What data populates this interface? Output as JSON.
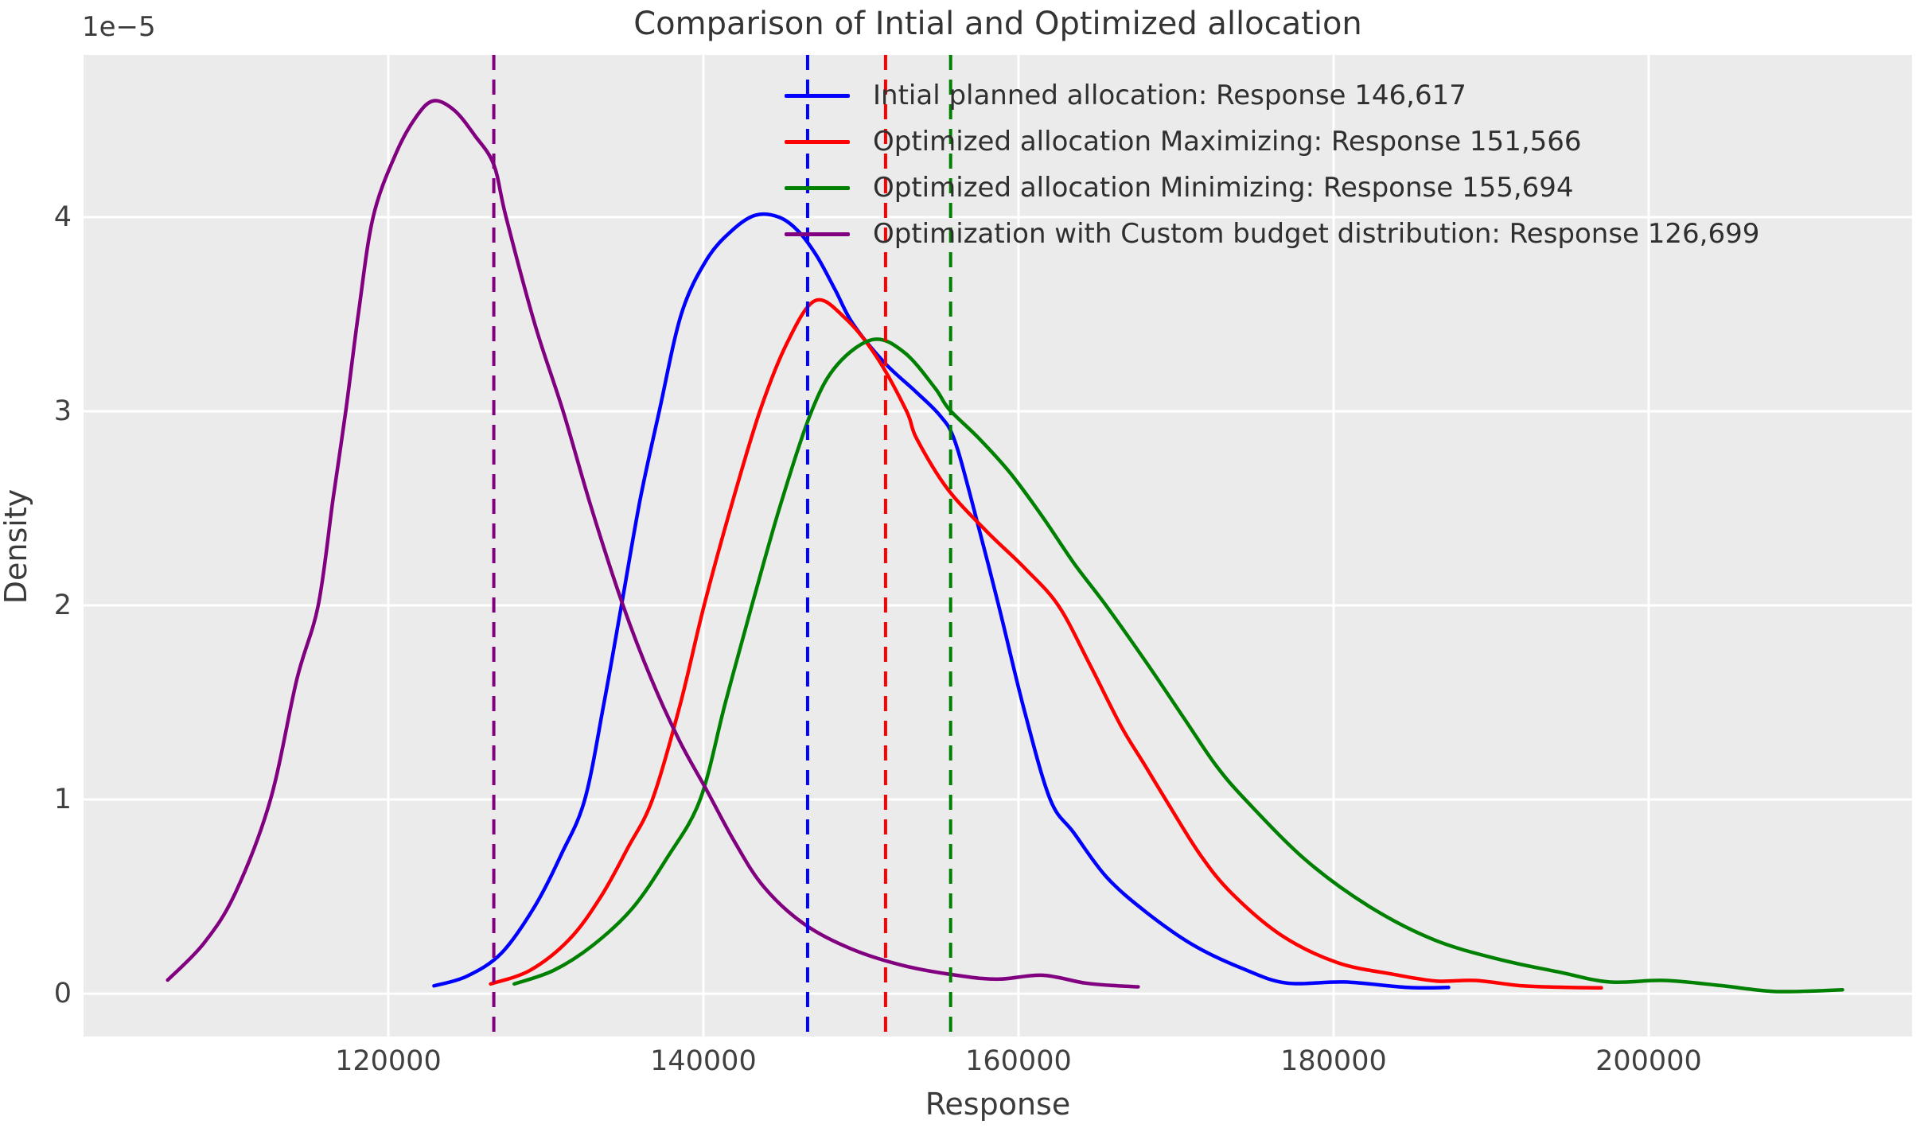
{
  "window": {
    "kind": "matplotlib-figure"
  },
  "chart_data": {
    "type": "line",
    "subtype": "kde-density",
    "title": "Comparison of Intial and Optimized allocation",
    "xlabel": "Response",
    "ylabel": "Density",
    "y_offset_label": "1e−5",
    "y_unit": "1e-5",
    "xlim": [
      100660,
      216720
    ],
    "ylim": [
      -0.221,
      4.836
    ],
    "x_ticks": [
      120000,
      140000,
      160000,
      180000,
      200000
    ],
    "x_tick_labels": [
      "120000",
      "140000",
      "160000",
      "180000",
      "200000"
    ],
    "y_ticks": [
      0,
      1,
      2,
      3,
      4
    ],
    "y_tick_labels": [
      "0",
      "1",
      "2",
      "3",
      "4"
    ],
    "grid": true,
    "plot_background": "#ebebeb",
    "grid_color": "#ffffff",
    "legend_position": "upper center, frameless",
    "series": [
      {
        "name": "initial-planned",
        "legend_label": "Intial planned allocation: Response 146,617",
        "color": "#0000ff",
        "mean": 146617,
        "mean_line_style": "dashed",
        "points": [
          [
            122900,
            0.04
          ],
          [
            125000,
            0.09
          ],
          [
            127200,
            0.21
          ],
          [
            129300,
            0.45
          ],
          [
            131000,
            0.72
          ],
          [
            132475,
            1.0
          ],
          [
            133700,
            1.5
          ],
          [
            134800,
            2.0
          ],
          [
            136000,
            2.55
          ],
          [
            137200,
            3.0
          ],
          [
            138600,
            3.5
          ],
          [
            140200,
            3.78
          ],
          [
            141800,
            3.93
          ],
          [
            143300,
            4.01
          ],
          [
            144800,
            4.0
          ],
          [
            146000,
            3.93
          ],
          [
            147200,
            3.8
          ],
          [
            148400,
            3.62
          ],
          [
            149500,
            3.45
          ],
          [
            151500,
            3.25
          ],
          [
            153500,
            3.1
          ],
          [
            155000,
            2.98
          ],
          [
            155900,
            2.86
          ],
          [
            157000,
            2.55
          ],
          [
            158740,
            2.0
          ],
          [
            160400,
            1.45
          ],
          [
            162020,
            1.0
          ],
          [
            163500,
            0.83
          ],
          [
            165600,
            0.6
          ],
          [
            168100,
            0.42
          ],
          [
            171100,
            0.25
          ],
          [
            174200,
            0.13
          ],
          [
            177000,
            0.055
          ],
          [
            180700,
            0.06
          ],
          [
            184700,
            0.032
          ],
          [
            187300,
            0.032
          ]
        ]
      },
      {
        "name": "optimized-maximizing",
        "legend_label": "Optimized allocation Maximizing: Response 151,566",
        "color": "#ff0000",
        "mean": 151566,
        "mean_line_style": "dashed",
        "points": [
          [
            126500,
            0.05
          ],
          [
            129000,
            0.12
          ],
          [
            131500,
            0.28
          ],
          [
            133500,
            0.5
          ],
          [
            135200,
            0.75
          ],
          [
            136768,
            1.0
          ],
          [
            138500,
            1.48
          ],
          [
            140050,
            2.0
          ],
          [
            141800,
            2.52
          ],
          [
            143586,
            3.0
          ],
          [
            145300,
            3.35
          ],
          [
            147100,
            3.57
          ],
          [
            149000,
            3.48
          ],
          [
            151000,
            3.28
          ],
          [
            152900,
            3.0
          ],
          [
            153535,
            2.86
          ],
          [
            155500,
            2.6
          ],
          [
            158000,
            2.38
          ],
          [
            160300,
            2.2
          ],
          [
            162525,
            2.0
          ],
          [
            164500,
            1.7
          ],
          [
            166500,
            1.38
          ],
          [
            168000,
            1.18
          ],
          [
            169343,
            1.0
          ],
          [
            171500,
            0.72
          ],
          [
            173500,
            0.52
          ],
          [
            176700,
            0.3
          ],
          [
            180230,
            0.16
          ],
          [
            183770,
            0.1
          ],
          [
            186500,
            0.065
          ],
          [
            189000,
            0.068
          ],
          [
            192000,
            0.04
          ],
          [
            195000,
            0.032
          ],
          [
            197000,
            0.03
          ]
        ]
      },
      {
        "name": "optimized-minimizing",
        "legend_label": "Optimized allocation Minimizing: Response 155,694",
        "color": "#008000",
        "mean": 155694,
        "mean_line_style": "dashed",
        "points": [
          [
            128000,
            0.05
          ],
          [
            130500,
            0.12
          ],
          [
            133000,
            0.25
          ],
          [
            135500,
            0.44
          ],
          [
            137700,
            0.7
          ],
          [
            139798,
            1.0
          ],
          [
            141400,
            1.5
          ],
          [
            143081,
            2.0
          ],
          [
            144900,
            2.52
          ],
          [
            146869,
            3.0
          ],
          [
            148500,
            3.24
          ],
          [
            150800,
            3.37
          ],
          [
            152800,
            3.3
          ],
          [
            154700,
            3.12
          ],
          [
            155606,
            3.01
          ],
          [
            157500,
            2.86
          ],
          [
            159500,
            2.68
          ],
          [
            161500,
            2.46
          ],
          [
            163500,
            2.22
          ],
          [
            165555,
            2.0
          ],
          [
            168000,
            1.72
          ],
          [
            170500,
            1.42
          ],
          [
            172500,
            1.18
          ],
          [
            174394,
            1.0
          ],
          [
            178210,
            0.69
          ],
          [
            182250,
            0.45
          ],
          [
            186290,
            0.28
          ],
          [
            190330,
            0.18
          ],
          [
            194370,
            0.11
          ],
          [
            197500,
            0.06
          ],
          [
            201000,
            0.068
          ],
          [
            204500,
            0.042
          ],
          [
            207800,
            0.012
          ],
          [
            210500,
            0.014
          ],
          [
            212300,
            0.02
          ]
        ]
      },
      {
        "name": "custom-budget",
        "legend_label": "Optimization with Custom budget distribution: Response 126,699",
        "color": "#800080",
        "mean": 126699,
        "mean_line_style": "dashed",
        "points": [
          [
            106000,
            0.07
          ],
          [
            108300,
            0.26
          ],
          [
            110300,
            0.52
          ],
          [
            112525,
            1.0
          ],
          [
            114200,
            1.62
          ],
          [
            115555,
            2.0
          ],
          [
            116500,
            2.55
          ],
          [
            117300,
            3.0
          ],
          [
            118100,
            3.5
          ],
          [
            119040,
            4.0
          ],
          [
            120500,
            4.33
          ],
          [
            121800,
            4.52
          ],
          [
            122900,
            4.6
          ],
          [
            124200,
            4.55
          ],
          [
            125500,
            4.42
          ],
          [
            126699,
            4.27
          ],
          [
            127476,
            4.0
          ],
          [
            129300,
            3.45
          ],
          [
            131100,
            3.0
          ],
          [
            132900,
            2.5
          ],
          [
            134900,
            2.0
          ],
          [
            136700,
            1.62
          ],
          [
            138500,
            1.3
          ],
          [
            140200,
            1.05
          ],
          [
            142000,
            0.78
          ],
          [
            143840,
            0.55
          ],
          [
            146370,
            0.36
          ],
          [
            149400,
            0.23
          ],
          [
            152930,
            0.14
          ],
          [
            156470,
            0.09
          ],
          [
            158800,
            0.075
          ],
          [
            161500,
            0.095
          ],
          [
            164200,
            0.055
          ],
          [
            166300,
            0.04
          ],
          [
            167600,
            0.035
          ]
        ]
      }
    ]
  }
}
